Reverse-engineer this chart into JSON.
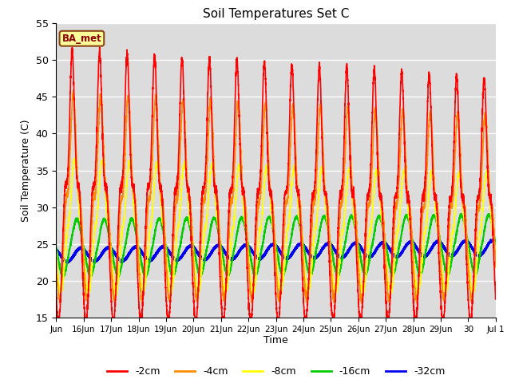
{
  "title": "Soil Temperatures Set C",
  "ylabel": "Soil Temperature (C)",
  "xlabel": "Time",
  "ylim": [
    15,
    55
  ],
  "bg_color": "#dcdcdc",
  "fig_color": "#ffffff",
  "legend_label": "BA_met",
  "legend_box_color": "#ffff99",
  "legend_box_edge": "#8b4513",
  "series_labels": [
    "-2cm",
    "-4cm",
    "-8cm",
    "-16cm",
    "-32cm"
  ],
  "series_colors": [
    "#ff0000",
    "#ff8c00",
    "#ffff00",
    "#00cc00",
    "#0000ee"
  ],
  "series_linewidths": [
    1.2,
    1.2,
    1.2,
    1.5,
    2.2
  ],
  "yticks": [
    15,
    20,
    25,
    30,
    35,
    40,
    45,
    50,
    55
  ],
  "tick_labels": [
    "Jun",
    "16Jun",
    "17Jun",
    "18Jun",
    "19Jun",
    "20Jun",
    "21Jun",
    "22Jun",
    "23Jun",
    "24Jun",
    "25Jun",
    "26Jun",
    "27Jun",
    "28Jun",
    "29Jun",
    "30",
    "Jul 1"
  ],
  "n_days": 16,
  "pts_per_day": 288
}
